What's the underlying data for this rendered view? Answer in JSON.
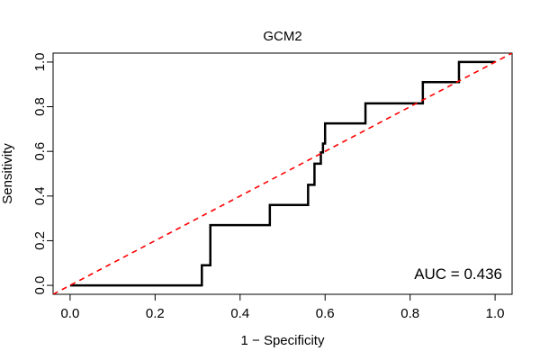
{
  "chart_data": {
    "type": "line",
    "title": "GCM2",
    "xlabel": "1 − Specificity",
    "ylabel": "Sensitivity",
    "xlim": [
      -0.04,
      1.04
    ],
    "ylim": [
      -0.04,
      1.04
    ],
    "xticks": [
      0.0,
      0.2,
      0.4,
      0.6,
      0.8,
      1.0
    ],
    "yticks": [
      0.0,
      0.2,
      0.4,
      0.6,
      0.8,
      1.0
    ],
    "xtick_labels": [
      "0.0",
      "0.2",
      "0.4",
      "0.6",
      "0.8",
      "1.0"
    ],
    "ytick_labels": [
      "0.0",
      "0.2",
      "0.4",
      "0.6",
      "0.8",
      "1.0"
    ],
    "grid": false,
    "annotation": "AUC = 0.436",
    "series": [
      {
        "color": "#000000",
        "style": "solid",
        "x": [
          0.0,
          0.31,
          0.31,
          0.33,
          0.33,
          0.47,
          0.47,
          0.56,
          0.56,
          0.575,
          0.575,
          0.59,
          0.59,
          0.595,
          0.595,
          0.6,
          0.6,
          0.695,
          0.695,
          0.83,
          0.83,
          0.915,
          0.915,
          1.0
        ],
        "y": [
          0.0,
          0.0,
          0.09,
          0.09,
          0.27,
          0.27,
          0.36,
          0.36,
          0.45,
          0.45,
          0.545,
          0.545,
          0.595,
          0.595,
          0.635,
          0.635,
          0.725,
          0.725,
          0.815,
          0.815,
          0.91,
          0.91,
          1.0,
          1.0
        ]
      },
      {
        "color": "#ff0000",
        "style": "dashed",
        "x": [
          -0.04,
          1.04
        ],
        "y": [
          -0.04,
          1.04
        ]
      }
    ]
  }
}
